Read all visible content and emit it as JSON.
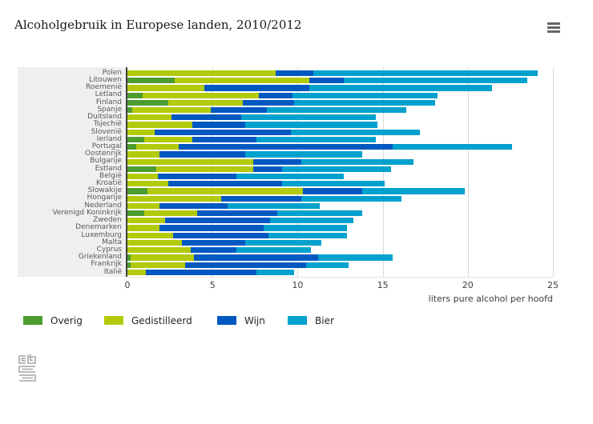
{
  "header": {
    "title": "Alcoholgebruik in Europese landen, 2010/2012",
    "menu_icon": "hamburger-menu-icon"
  },
  "chart_data": {
    "type": "bar",
    "orientation": "horizontal",
    "stacked": true,
    "title": "Alcoholgebruik in Europese landen, 2010/2012",
    "xlabel": "liters pure alcohol per hoofd",
    "ylabel": "",
    "xlim": [
      0,
      25
    ],
    "xticks": [
      0,
      5,
      10,
      15,
      20,
      25
    ],
    "xtick_labels": [
      "0",
      "5",
      "10",
      "15",
      "20",
      "25"
    ],
    "grid": true,
    "legend_position": "bottom",
    "sort_order": "descending by Bier segment",
    "categories": [
      "Polen",
      "Litouwen",
      "Roemenië",
      "Letland",
      "Finland",
      "Spanje",
      "Duitsland",
      "Tsjechië",
      "Slovenië",
      "Ierland",
      "Portugal",
      "Oostenrijk",
      "Bulgarije",
      "Estland",
      "België",
      "Kroatië",
      "Slowakije",
      "Hongarije",
      "Nederland",
      "Verenigd Koninkrijk",
      "Zweden",
      "Denemarken",
      "Luxemburg",
      "Malta",
      "Cyprus",
      "Griekenland",
      "Frankrijk",
      "Italië"
    ],
    "series": [
      {
        "name": "Overig",
        "color": "#4c9c2e",
        "values": [
          0,
          2.8,
          0,
          0.9,
          2.4,
          0.3,
          0,
          0,
          0,
          1.0,
          0.5,
          0,
          0,
          1.7,
          0,
          0,
          1.2,
          0,
          0,
          1.0,
          0,
          0,
          0,
          0,
          0,
          0.2,
          0.2,
          0
        ]
      },
      {
        "name": "Gedistilleerd",
        "color": "#b2ca0a",
        "values": [
          8.7,
          7.9,
          4.5,
          6.8,
          4.4,
          4.6,
          2.6,
          3.8,
          1.6,
          2.8,
          2.5,
          1.9,
          7.4,
          5.7,
          1.8,
          2.4,
          9.1,
          5.5,
          1.9,
          3.1,
          2.2,
          1.9,
          2.7,
          3.2,
          3.7,
          3.7,
          3.2,
          1.1
        ]
      },
      {
        "name": "Wijn",
        "color": "#0058c1",
        "values": [
          2.2,
          2.0,
          6.2,
          2.0,
          3.0,
          3.3,
          4.1,
          3.1,
          8.0,
          3.8,
          12.6,
          5.0,
          2.8,
          1.7,
          4.6,
          6.7,
          3.5,
          4.7,
          4.0,
          4.7,
          6.2,
          6.1,
          5.6,
          3.7,
          2.7,
          7.3,
          7.1,
          6.5
        ]
      },
      {
        "name": "Bier",
        "color": "#00a1cd",
        "values": [
          13.2,
          10.8,
          10.7,
          8.5,
          8.3,
          8.2,
          7.9,
          7.8,
          7.6,
          7.0,
          7.0,
          6.9,
          6.6,
          6.4,
          6.3,
          6.0,
          6.0,
          5.9,
          5.4,
          5.0,
          4.9,
          4.9,
          4.6,
          4.5,
          4.4,
          4.4,
          2.5,
          2.2
        ]
      }
    ]
  },
  "legend": {
    "items": [
      {
        "label": "Overig",
        "color": "#4c9c2e"
      },
      {
        "label": "Gedistilleerd",
        "color": "#b2ca0a"
      },
      {
        "label": "Wijn",
        "color": "#0058c1"
      },
      {
        "label": "Bier",
        "color": "#00a1cd"
      }
    ]
  },
  "footer": {
    "logo": "cbs-logo"
  }
}
